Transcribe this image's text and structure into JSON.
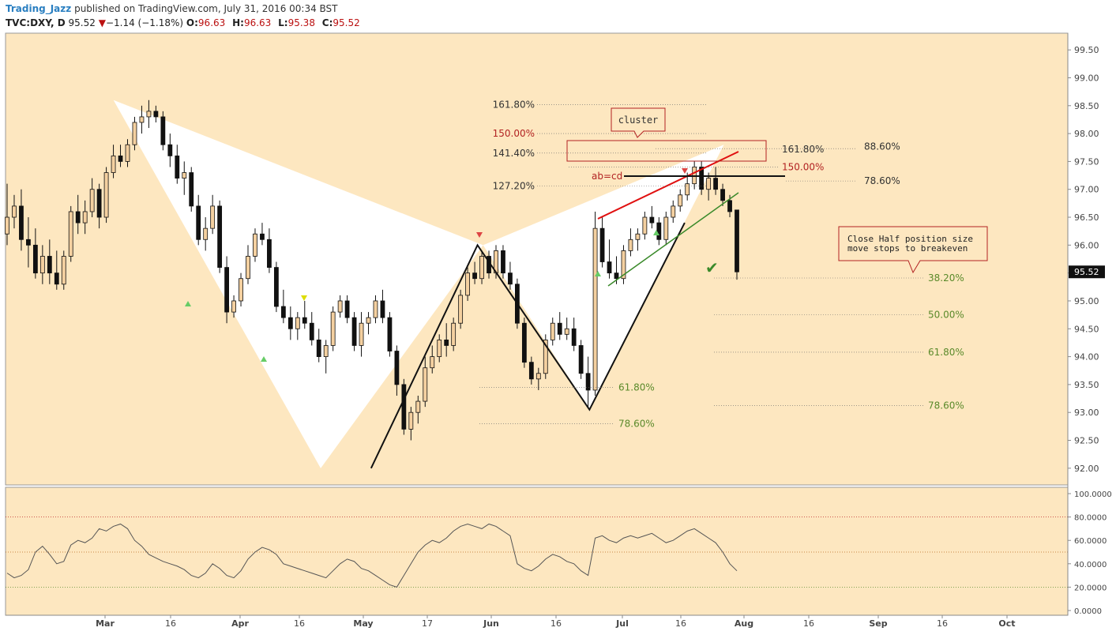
{
  "header": {
    "user": "Trading_Jazz",
    "published": "published on TradingView.com, July 31, 2016 00:34 BST",
    "symbol": "TVC:DXY, D",
    "last": "95.52",
    "change": "−1.14 (−1.18%)",
    "open_label": "O:",
    "open": "96.63",
    "high_label": "H:",
    "high": "96.63",
    "low_label": "L:",
    "low": "95.38",
    "close_label": "C:",
    "close": "95.52"
  },
  "colors": {
    "bg": "#fde7c0",
    "up": "#f4d0a0",
    "down": "#111111",
    "fib_green": "#5a8a2a",
    "fib_red": "#b22222",
    "pattern": "#ffffff",
    "red_line": "#e01010",
    "green_line": "#3a8a2a"
  },
  "chart_data": [
    {
      "type": "candlestick",
      "title": "TVC:DXY, D",
      "ylim": [
        91.7,
        99.8
      ],
      "yticks": [
        "92.00",
        "92.50",
        "93.00",
        "93.50",
        "94.00",
        "94.50",
        "95.00",
        "95.50",
        "96.00",
        "96.50",
        "97.00",
        "97.50",
        "98.00",
        "98.50",
        "99.00",
        "99.50"
      ],
      "xticks": [
        "Mar",
        "16",
        "Apr",
        "16",
        "May",
        "17",
        "Jun",
        "16",
        "Jul",
        "16",
        "Aug",
        "16",
        "Sep",
        "16",
        "Oct"
      ],
      "price_tag": "95.52",
      "candles": [
        [
          96.2,
          97.1,
          96.0,
          96.5
        ],
        [
          96.5,
          96.9,
          96.3,
          96.7
        ],
        [
          96.7,
          97.0,
          95.9,
          96.1
        ],
        [
          96.1,
          96.5,
          95.6,
          96.0
        ],
        [
          96.0,
          96.3,
          95.4,
          95.5
        ],
        [
          95.5,
          96.0,
          95.3,
          95.8
        ],
        [
          95.8,
          96.1,
          95.3,
          95.5
        ],
        [
          95.5,
          95.9,
          95.2,
          95.3
        ],
        [
          95.3,
          95.9,
          95.2,
          95.8
        ],
        [
          95.8,
          96.7,
          95.7,
          96.6
        ],
        [
          96.6,
          96.9,
          96.2,
          96.4
        ],
        [
          96.4,
          96.8,
          96.2,
          96.6
        ],
        [
          96.6,
          97.2,
          96.5,
          97.0
        ],
        [
          97.0,
          97.1,
          96.3,
          96.5
        ],
        [
          96.5,
          97.4,
          96.4,
          97.3
        ],
        [
          97.3,
          97.8,
          97.2,
          97.6
        ],
        [
          97.6,
          97.8,
          97.4,
          97.5
        ],
        [
          97.5,
          97.9,
          97.4,
          97.8
        ],
        [
          97.8,
          98.3,
          97.7,
          98.2
        ],
        [
          98.2,
          98.5,
          98.0,
          98.3
        ],
        [
          98.3,
          98.6,
          98.1,
          98.4
        ],
        [
          98.4,
          98.5,
          98.2,
          98.3
        ],
        [
          98.3,
          98.4,
          97.7,
          97.8
        ],
        [
          97.8,
          98.0,
          97.4,
          97.6
        ],
        [
          97.6,
          97.8,
          97.1,
          97.2
        ],
        [
          97.2,
          97.5,
          96.9,
          97.3
        ],
        [
          97.3,
          97.4,
          96.6,
          96.7
        ],
        [
          96.7,
          96.9,
          96.0,
          96.1
        ],
        [
          96.1,
          96.5,
          95.9,
          96.3
        ],
        [
          96.3,
          96.9,
          96.2,
          96.7
        ],
        [
          96.7,
          96.8,
          95.5,
          95.6
        ],
        [
          95.6,
          95.8,
          94.6,
          94.8
        ],
        [
          94.8,
          95.1,
          94.7,
          95.0
        ],
        [
          95.0,
          95.5,
          94.9,
          95.4
        ],
        [
          95.4,
          96.0,
          95.3,
          95.8
        ],
        [
          95.8,
          96.3,
          95.7,
          96.2
        ],
        [
          96.2,
          96.4,
          96.0,
          96.1
        ],
        [
          96.1,
          96.3,
          95.5,
          95.6
        ],
        [
          95.6,
          95.7,
          94.8,
          94.9
        ],
        [
          94.9,
          95.2,
          94.6,
          94.7
        ],
        [
          94.7,
          94.9,
          94.3,
          94.5
        ],
        [
          94.5,
          94.8,
          94.3,
          94.7
        ],
        [
          94.7,
          95.0,
          94.5,
          94.6
        ],
        [
          94.6,
          94.8,
          94.2,
          94.3
        ],
        [
          94.3,
          94.5,
          93.9,
          94.0
        ],
        [
          94.0,
          94.3,
          93.7,
          94.2
        ],
        [
          94.2,
          94.9,
          94.1,
          94.8
        ],
        [
          94.8,
          95.1,
          94.7,
          95.0
        ],
        [
          95.0,
          95.1,
          94.6,
          94.7
        ],
        [
          94.7,
          94.8,
          94.1,
          94.2
        ],
        [
          94.2,
          94.8,
          94.0,
          94.6
        ],
        [
          94.6,
          94.8,
          94.4,
          94.7
        ],
        [
          94.7,
          95.1,
          94.6,
          95.0
        ],
        [
          95.0,
          95.2,
          94.6,
          94.7
        ],
        [
          94.7,
          94.8,
          94.0,
          94.1
        ],
        [
          94.1,
          94.2,
          93.3,
          93.5
        ],
        [
          93.5,
          93.6,
          92.6,
          92.7
        ],
        [
          92.7,
          93.1,
          92.5,
          93.0
        ],
        [
          93.0,
          93.3,
          92.8,
          93.2
        ],
        [
          93.2,
          94.0,
          93.1,
          93.8
        ],
        [
          93.8,
          94.2,
          93.7,
          94.0
        ],
        [
          94.0,
          94.4,
          93.9,
          94.3
        ],
        [
          94.3,
          94.6,
          94.0,
          94.2
        ],
        [
          94.2,
          94.7,
          94.1,
          94.6
        ],
        [
          94.6,
          95.2,
          94.5,
          95.1
        ],
        [
          95.1,
          95.6,
          95.0,
          95.5
        ],
        [
          95.5,
          95.7,
          95.3,
          95.4
        ],
        [
          95.4,
          95.9,
          95.3,
          95.8
        ],
        [
          95.8,
          95.9,
          95.4,
          95.5
        ],
        [
          95.5,
          96.0,
          95.4,
          95.9
        ],
        [
          95.9,
          96.0,
          95.4,
          95.5
        ],
        [
          95.5,
          95.7,
          95.2,
          95.3
        ],
        [
          95.3,
          95.4,
          94.5,
          94.6
        ],
        [
          94.6,
          94.7,
          93.8,
          93.9
        ],
        [
          93.9,
          94.0,
          93.5,
          93.6
        ],
        [
          93.6,
          93.8,
          93.4,
          93.7
        ],
        [
          93.7,
          94.4,
          93.6,
          94.3
        ],
        [
          94.3,
          94.7,
          94.2,
          94.6
        ],
        [
          94.6,
          94.8,
          94.3,
          94.4
        ],
        [
          94.4,
          94.7,
          94.3,
          94.5
        ],
        [
          94.5,
          94.7,
          94.1,
          94.2
        ],
        [
          94.2,
          94.3,
          93.6,
          93.7
        ],
        [
          93.7,
          94.0,
          93.1,
          93.4
        ],
        [
          93.4,
          96.6,
          93.3,
          96.3
        ],
        [
          96.3,
          96.5,
          95.6,
          95.7
        ],
        [
          95.7,
          96.1,
          95.4,
          95.5
        ],
        [
          95.5,
          95.8,
          95.3,
          95.4
        ],
        [
          95.4,
          96.0,
          95.3,
          95.9
        ],
        [
          95.9,
          96.3,
          95.8,
          96.1
        ],
        [
          96.1,
          96.3,
          95.9,
          96.2
        ],
        [
          96.2,
          96.6,
          96.1,
          96.5
        ],
        [
          96.5,
          96.7,
          96.3,
          96.4
        ],
        [
          96.4,
          96.5,
          96.0,
          96.1
        ],
        [
          96.1,
          96.6,
          96.0,
          96.5
        ],
        [
          96.5,
          96.8,
          96.4,
          96.7
        ],
        [
          96.7,
          97.0,
          96.6,
          96.9
        ],
        [
          96.9,
          97.3,
          96.8,
          97.1
        ],
        [
          97.1,
          97.5,
          97.0,
          97.4
        ],
        [
          97.4,
          97.5,
          96.9,
          97.0
        ],
        [
          97.0,
          97.3,
          96.8,
          97.2
        ],
        [
          97.2,
          97.4,
          96.9,
          97.0
        ],
        [
          97.0,
          97.1,
          96.7,
          96.8
        ],
        [
          96.8,
          96.9,
          96.5,
          96.6
        ],
        [
          96.63,
          96.63,
          95.38,
          95.52
        ]
      ]
    },
    {
      "type": "line",
      "title": "RSI",
      "ylim": [
        0,
        100
      ],
      "yticks": [
        "100.0000",
        "80.0000",
        "60.0000",
        "40.0000",
        "20.0000",
        "0.0000"
      ],
      "series": [
        {
          "values": [
            32,
            28,
            30,
            35,
            50,
            55,
            48,
            40,
            42,
            56,
            60,
            58,
            62,
            70,
            68,
            72,
            74,
            70,
            60,
            55,
            48,
            45,
            42,
            40,
            38,
            35,
            30,
            28,
            32,
            40,
            36,
            30,
            28,
            34,
            44,
            50,
            54,
            52,
            48,
            40,
            38,
            36,
            34,
            32,
            30,
            28,
            34,
            40,
            44,
            42,
            36,
            34,
            30,
            26,
            22,
            20,
            30,
            40,
            50,
            56,
            60,
            58,
            62,
            68,
            72,
            74,
            72,
            70,
            74,
            72,
            68,
            64,
            40,
            36,
            34,
            38,
            44,
            48,
            46,
            42,
            40,
            34,
            30,
            62,
            64,
            60,
            58,
            62,
            64,
            62,
            64,
            66,
            62,
            58,
            60,
            64,
            68,
            70,
            66,
            62,
            58,
            50,
            40,
            34
          ]
        }
      ],
      "hlines": [
        80,
        50,
        20
      ]
    }
  ],
  "annotations": {
    "fib_top": [
      {
        "label": "161.80%",
        "price": 98.52,
        "color": "#333333"
      },
      {
        "label": "150.00%",
        "price": 98.0,
        "color": "#b22222"
      },
      {
        "label": "141.40%",
        "price": 97.65,
        "color": "#333333"
      },
      {
        "label": "127.20%",
        "price": 97.06,
        "color": "#333333"
      }
    ],
    "fib_right": [
      {
        "label": "161.80%",
        "price": 97.73,
        "color": "#333333"
      },
      {
        "label": "88.60%",
        "price": 97.77,
        "color": "#333333"
      },
      {
        "label": "150.00%",
        "price": 97.4,
        "color": "#b22222"
      },
      {
        "label": "78.60%",
        "price": 97.15,
        "color": "#333333"
      }
    ],
    "fib_retrace": [
      {
        "label": "38.20%",
        "price": 95.41
      },
      {
        "label": "50.00%",
        "price": 94.75
      },
      {
        "label": "61.80%",
        "price": 94.08
      },
      {
        "label": "78.60%",
        "price": 93.12
      }
    ],
    "fib_mid": [
      {
        "label": "61.80%",
        "price": 93.45
      },
      {
        "label": "78.60%",
        "price": 92.8
      }
    ],
    "abcd_label": "ab=cd",
    "cluster_label": "cluster",
    "note_line1": "Close Half position size",
    "note_line2": "move stops to breakeven",
    "checkmark": "✔"
  }
}
